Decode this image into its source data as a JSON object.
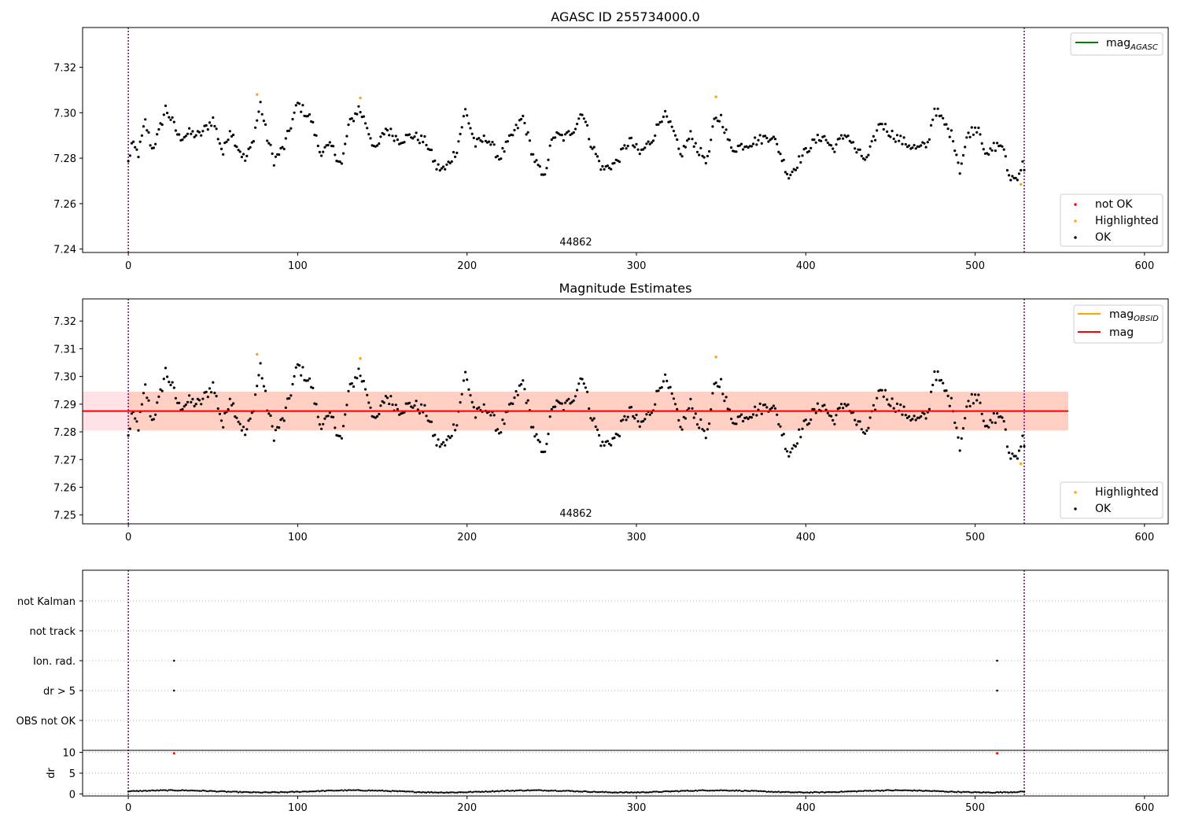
{
  "chart_data": [
    {
      "type": "scatter",
      "title": "AGASC ID 255734000.0",
      "annotation": "44862",
      "xlim": [
        -27,
        614
      ],
      "ylim": [
        7.2385,
        7.3375
      ],
      "xticks": [
        0,
        100,
        200,
        300,
        400,
        500,
        600
      ],
      "yticks": [
        7.24,
        7.26,
        7.28,
        7.3,
        7.32
      ],
      "ytick_labels": [
        "7.24",
        "7.26",
        "7.28",
        "7.30",
        "7.32"
      ],
      "vlines": [
        0,
        529
      ],
      "colors": {
        "ok": "#000000",
        "highlighted": "#ffa500",
        "not_ok": "#ff0000",
        "mag_agasc": "#008000",
        "vline": "#800080"
      },
      "legend_upper": [
        {
          "label": "mag",
          "subscript": "AGASC",
          "color": "#008000"
        }
      ],
      "legend_lower": [
        {
          "label": "not OK",
          "color": "#ff0000"
        },
        {
          "label": "Highlighted",
          "color": "#ffa500"
        },
        {
          "label": "OK",
          "color": "#000000"
        }
      ],
      "legend_upper_position": "upper right",
      "legend_lower_position": "lower right",
      "highlighted_points": [
        [
          76,
          7.308
        ],
        [
          137,
          7.3065
        ],
        [
          347,
          7.307
        ],
        [
          527,
          7.2685
        ]
      ],
      "ok_keypoints": [
        [
          0,
          7.278
        ],
        [
          2,
          7.286
        ],
        [
          6,
          7.282
        ],
        [
          10,
          7.296
        ],
        [
          14,
          7.284
        ],
        [
          18,
          7.291
        ],
        [
          22,
          7.302
        ],
        [
          26,
          7.296
        ],
        [
          30,
          7.289
        ],
        [
          36,
          7.291
        ],
        [
          42,
          7.29
        ],
        [
          50,
          7.297
        ],
        [
          56,
          7.282
        ],
        [
          60,
          7.293
        ],
        [
          64,
          7.286
        ],
        [
          69,
          7.279
        ],
        [
          73,
          7.286
        ],
        [
          78,
          7.304
        ],
        [
          82,
          7.289
        ],
        [
          86,
          7.279
        ],
        [
          92,
          7.285
        ],
        [
          100,
          7.304
        ],
        [
          108,
          7.297
        ],
        [
          113,
          7.283
        ],
        [
          120,
          7.285
        ],
        [
          126,
          7.277
        ],
        [
          130,
          7.294
        ],
        [
          136,
          7.302
        ],
        [
          140,
          7.296
        ],
        [
          146,
          7.283
        ],
        [
          152,
          7.293
        ],
        [
          160,
          7.288
        ],
        [
          168,
          7.29
        ],
        [
          176,
          7.287
        ],
        [
          182,
          7.276
        ],
        [
          187,
          7.275
        ],
        [
          194,
          7.284
        ],
        [
          199,
          7.301
        ],
        [
          205,
          7.286
        ],
        [
          212,
          7.289
        ],
        [
          219,
          7.28
        ],
        [
          226,
          7.289
        ],
        [
          233,
          7.298
        ],
        [
          239,
          7.281
        ],
        [
          245,
          7.271
        ],
        [
          251,
          7.29
        ],
        [
          258,
          7.289
        ],
        [
          264,
          7.294
        ],
        [
          268,
          7.301
        ],
        [
          273,
          7.287
        ],
        [
          280,
          7.275
        ],
        [
          288,
          7.278
        ],
        [
          296,
          7.288
        ],
        [
          302,
          7.282
        ],
        [
          309,
          7.288
        ],
        [
          316,
          7.3
        ],
        [
          322,
          7.291
        ],
        [
          326,
          7.281
        ],
        [
          332,
          7.29
        ],
        [
          337,
          7.283
        ],
        [
          342,
          7.279
        ],
        [
          346,
          7.296
        ],
        [
          350,
          7.298
        ],
        [
          356,
          7.284
        ],
        [
          364,
          7.286
        ],
        [
          372,
          7.288
        ],
        [
          380,
          7.29
        ],
        [
          384,
          7.284
        ],
        [
          390,
          7.272
        ],
        [
          396,
          7.279
        ],
        [
          402,
          7.285
        ],
        [
          410,
          7.29
        ],
        [
          416,
          7.284
        ],
        [
          424,
          7.291
        ],
        [
          430,
          7.283
        ],
        [
          436,
          7.279
        ],
        [
          444,
          7.296
        ],
        [
          450,
          7.291
        ],
        [
          458,
          7.287
        ],
        [
          466,
          7.284
        ],
        [
          472,
          7.286
        ],
        [
          476,
          7.302
        ],
        [
          482,
          7.295
        ],
        [
          487,
          7.289
        ],
        [
          491,
          7.275
        ],
        [
          496,
          7.291
        ],
        [
          502,
          7.294
        ],
        [
          507,
          7.28
        ],
        [
          511,
          7.285
        ],
        [
          516,
          7.286
        ],
        [
          520,
          7.272
        ],
        [
          524,
          7.271
        ],
        [
          528,
          7.277
        ],
        [
          529,
          7.276
        ]
      ]
    },
    {
      "type": "scatter",
      "title": "Magnitude Estimates",
      "annotation": "44862",
      "xlim": [
        -27,
        614
      ],
      "ylim": [
        7.2468,
        7.328
      ],
      "xticks": [
        0,
        100,
        200,
        300,
        400,
        500,
        600
      ],
      "yticks": [
        7.25,
        7.26,
        7.27,
        7.28,
        7.29,
        7.3,
        7.31,
        7.32
      ],
      "ytick_labels": [
        "7.25",
        "7.26",
        "7.27",
        "7.28",
        "7.29",
        "7.30",
        "7.31",
        "7.32"
      ],
      "vlines": [
        0,
        529
      ],
      "mag_line": 7.2875,
      "mag_band": [
        7.2805,
        7.2945
      ],
      "mag_band_x": [
        -27,
        555
      ],
      "colors": {
        "mag_line": "#ff0000",
        "mag_obsid": "#ffa500",
        "band_pink": "#ffc8d2",
        "band_orange": "#ffb080"
      },
      "legend_upper": [
        {
          "label": "mag",
          "subscript": "OBSID",
          "color": "#ffa500"
        },
        {
          "label": "mag",
          "subscript": "",
          "color": "#ff0000"
        }
      ],
      "legend_lower": [
        {
          "label": "Highlighted",
          "color": "#ffa500"
        },
        {
          "label": "OK",
          "color": "#000000"
        }
      ]
    },
    {
      "type": "scatter",
      "title": "",
      "xlim": [
        -27,
        614
      ],
      "xticks": [
        0,
        100,
        200,
        300,
        400,
        500,
        600
      ],
      "vlines": [
        0,
        529
      ],
      "flag_categories": [
        "not Kalman",
        "not track",
        "Ion. rad.",
        "dr > 5",
        "OBS not OK"
      ],
      "flag_points": [
        [
          27,
          "Ion. rad."
        ],
        [
          27,
          "dr > 5"
        ],
        [
          513,
          "Ion. rad."
        ],
        [
          513,
          "dr > 5"
        ]
      ],
      "dr_ylabel": "dr",
      "dr_yticks": [
        0,
        5,
        10
      ],
      "dr_ylim": [
        -0.5,
        10.5
      ],
      "dr_baseline": 0.6,
      "dr_spikes": [
        [
          27,
          9.8
        ],
        [
          513,
          9.8
        ]
      ]
    }
  ]
}
